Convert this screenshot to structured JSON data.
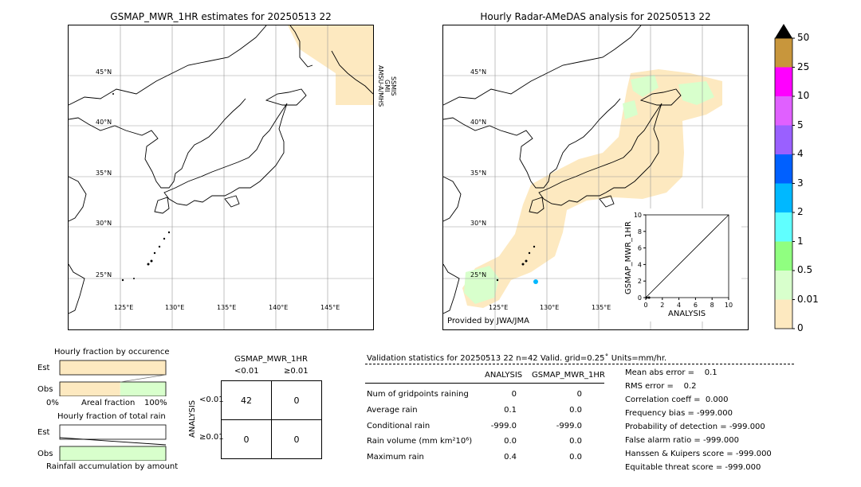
{
  "left_map": {
    "title": "GSMAP_MWR_1HR estimates for 20250513 22",
    "satellite_labels": [
      "AMSU-A/MHS",
      "GMI",
      "SSMIS"
    ],
    "lat_labels": [
      "45°N",
      "40°N",
      "35°N",
      "30°N",
      "25°N"
    ],
    "lon_labels": [
      "125°E",
      "130°E",
      "135°E",
      "140°E",
      "145°E"
    ]
  },
  "right_map": {
    "title": "Hourly Radar-AMeDAS analysis for 20250513 22",
    "lat_labels": [
      "45°N",
      "40°N",
      "35°N",
      "30°N",
      "25°N"
    ],
    "lon_labels": [
      "125°E",
      "130°E",
      "135°E"
    ],
    "credit": "Provided by JWA/JMA"
  },
  "colorbar": {
    "ticks": [
      "50",
      "25",
      "10",
      "5",
      "4",
      "3",
      "2",
      "1",
      "0.5",
      "0.01",
      "0"
    ],
    "colors": [
      "#c8963c",
      "#ff00ff",
      "#e060ff",
      "#9a60ff",
      "#0060ff",
      "#00b8ff",
      "#60ffff",
      "#90ff80",
      "#d8ffcc",
      "#fde9c0"
    ],
    "over_color": "#000000"
  },
  "chart_data": [
    {
      "type": "scatter",
      "title": "",
      "xlabel": "ANALYSIS",
      "ylabel": "GSMAP_MWR_1HR",
      "xlim": [
        0,
        10
      ],
      "ylim": [
        0,
        10
      ],
      "xticks": [
        "0",
        "2",
        "4",
        "6",
        "8",
        "10"
      ],
      "yticks": [
        "0",
        "2",
        "4",
        "6",
        "8",
        "10"
      ],
      "points": [
        {
          "x": 0.1,
          "y": 0.0
        },
        {
          "x": 0.4,
          "y": 0.0
        }
      ]
    },
    {
      "type": "bar",
      "title": "Hourly fraction by occurence",
      "categories": [
        "Est",
        "Obs"
      ],
      "xlabel": "Areal fraction",
      "xtick_left": "0%",
      "xtick_right": "100%",
      "series": [
        {
          "values": [
            1.0,
            0.57
          ],
          "color": "#fde9c0"
        },
        {
          "values": [
            0.0,
            0.43
          ],
          "color": "#d8ffcc"
        }
      ]
    },
    {
      "type": "bar",
      "title": "Hourly fraction of total rain",
      "categories": [
        "Est",
        "Obs"
      ],
      "xlabel": "Rainfall accumulation by amount",
      "series": [
        {
          "values": [
            0.0,
            0.0
          ],
          "color": "#fde9c0"
        },
        {
          "values": [
            0.0,
            1.0
          ],
          "color": "#d8ffcc"
        }
      ]
    }
  ],
  "contingency": {
    "title": "GSMAP_MWR_1HR",
    "col_labels": [
      "<0.01",
      "≥0.01"
    ],
    "row_axis": "ANALYSIS",
    "row_labels": [
      "<0.01",
      "≥0.01"
    ],
    "cells": [
      [
        "42",
        "0"
      ],
      [
        "0",
        "0"
      ]
    ]
  },
  "validation": {
    "header": "Validation statistics for 20250513 22  n=42 Valid. grid=0.25˚ Units=mm/hr.",
    "col_analysis": "ANALYSIS",
    "col_gsmap": "GSMAP_MWR_1HR",
    "rows": [
      {
        "label": "Num of gridpoints raining",
        "a": "0",
        "g": "0"
      },
      {
        "label": "Average rain",
        "a": "0.1",
        "g": "0.0"
      },
      {
        "label": "Conditional rain",
        "a": "-999.0",
        "g": "-999.0"
      },
      {
        "label": "Rain volume (mm km²10⁶)",
        "a": "0.0",
        "g": "0.0"
      },
      {
        "label": "Maximum rain",
        "a": "0.4",
        "g": "0.0"
      }
    ],
    "scores": [
      "Mean abs error =    0.1",
      "RMS error =    0.2",
      "Correlation coeff =  0.000",
      "Frequency bias = -999.000",
      "Probability of detection = -999.000",
      "False alarm ratio = -999.000",
      "Hanssen & Kuipers score = -999.000",
      "Equitable threat score = -999.000"
    ]
  }
}
